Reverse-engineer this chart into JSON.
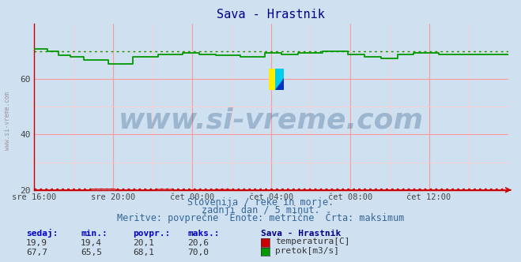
{
  "title": "Sava - Hrastnik",
  "bg_color": "#cfe0f0",
  "plot_bg_color": "#cfe0f0",
  "grid_major_color": "#ff9999",
  "grid_minor_color": "#ffcccc",
  "x_labels": [
    "sre 16:00",
    "sre 20:00",
    "čet 00:00",
    "čet 04:00",
    "čet 08:00",
    "čet 12:00"
  ],
  "x_ticks_norm": [
    0.0,
    0.1667,
    0.3333,
    0.5,
    0.6667,
    0.8333
  ],
  "y_min": 20,
  "y_max": 80,
  "y_ticks": [
    20,
    40,
    60
  ],
  "temp_color": "#cc0000",
  "flow_color": "#009900",
  "temp_max_val": 20.6,
  "flow_max_val": 70.0,
  "watermark": "www.si-vreme.com",
  "watermark_color": "#1a4a7a",
  "watermark_alpha": 0.28,
  "watermark_fontsize": 26,
  "subtitle1": "Slovenija / reke in morje.",
  "subtitle2": "zadnji dan / 5 minut.",
  "subtitle3": "Meritve: povprečne  Enote: metrične  Črta: maksimum",
  "subtitle_color": "#336699",
  "subtitle_fontsize": 8.5,
  "legend_title": "Sava - Hrastnik",
  "legend_items": [
    "temperatura[C]",
    "pretok[m3/s]"
  ],
  "legend_colors": [
    "#cc0000",
    "#009900"
  ],
  "table_headers": [
    "sedaj:",
    "min.:",
    "povpr.:",
    "maks.:"
  ],
  "table_temp": [
    "19,9",
    "19,4",
    "20,1",
    "20,6"
  ],
  "table_flow": [
    "67,7",
    "65,5",
    "68,1",
    "70,0"
  ],
  "arrow_color": "#cc0000",
  "n_points": 288,
  "logo_colors": [
    "#ffee00",
    "#00ccee",
    "#0033bb"
  ],
  "side_text": "www.si-vreme.com",
  "side_text_color": "#888888"
}
